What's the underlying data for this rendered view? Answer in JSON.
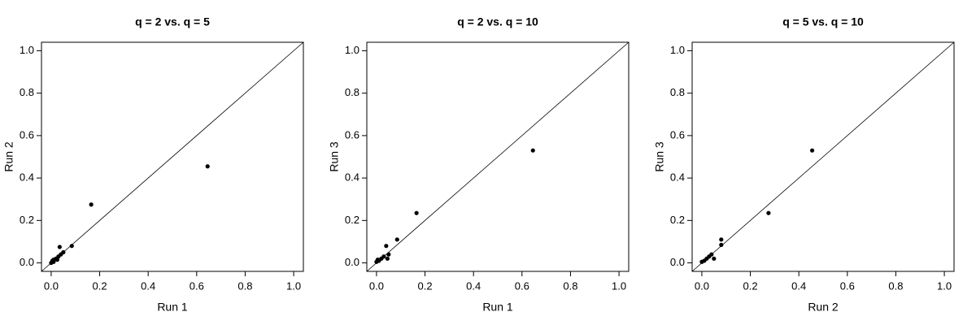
{
  "chart_data": [
    {
      "type": "scatter",
      "title": "q = 2 vs. q = 5",
      "x_label": "Run 1",
      "y_label": "Run 2",
      "x": [
        0.645,
        0.165,
        0.085,
        0.035,
        0.05,
        0.04,
        0.03,
        0.02,
        0.01,
        0.005,
        0,
        0.01,
        0.025
      ],
      "values": [
        0.455,
        0.275,
        0.08,
        0.075,
        0.05,
        0.04,
        0.03,
        0.02,
        0.015,
        0.01,
        0,
        0.005,
        0.015
      ],
      "color": "#000000",
      "diagonal": true,
      "xlim": [
        -0.04,
        1.04
      ],
      "ylim": [
        -0.04,
        1.04
      ],
      "xticks": [
        {
          "value": 0,
          "label": "0.0"
        },
        0.2,
        0.4,
        0.6,
        0.8,
        {
          "value": 1,
          "label": "1.0"
        }
      ],
      "yticks": [
        {
          "value": 0,
          "label": "0.0"
        },
        0.2,
        0.4,
        0.6,
        0.8,
        {
          "value": 1,
          "label": "1.0"
        }
      ]
    },
    {
      "type": "scatter",
      "title": "q = 2 vs. q = 10",
      "x_label": "Run 1",
      "y_label": "Run 3",
      "x": [
        0.645,
        0.165,
        0.085,
        0.04,
        0.05,
        0.045,
        0.03,
        0.02,
        0.01,
        0,
        0.005
      ],
      "values": [
        0.53,
        0.235,
        0.11,
        0.08,
        0.04,
        0.02,
        0.03,
        0.02,
        0.01,
        0.005,
        0.015
      ],
      "color": "#000000",
      "diagonal": true,
      "xlim": [
        -0.04,
        1.04
      ],
      "ylim": [
        -0.04,
        1.04
      ],
      "xticks": [
        {
          "value": 0,
          "label": "0.0"
        },
        0.2,
        0.4,
        0.6,
        0.8,
        {
          "value": 1,
          "label": "1.0"
        }
      ],
      "yticks": [
        {
          "value": 0,
          "label": "0.0"
        },
        0.2,
        0.4,
        0.6,
        0.8,
        {
          "value": 1,
          "label": "1.0"
        }
      ]
    },
    {
      "type": "scatter",
      "title": "q = 5 vs. q = 10",
      "x_label": "Run 2",
      "y_label": "Run 3",
      "x": [
        0.455,
        0.275,
        0.08,
        0.08,
        0.05,
        0.04,
        0.03,
        0.02,
        0.01,
        0
      ],
      "values": [
        0.53,
        0.235,
        0.11,
        0.085,
        0.02,
        0.04,
        0.03,
        0.02,
        0.01,
        0.005
      ],
      "color": "#000000",
      "diagonal": true,
      "xlim": [
        -0.04,
        1.04
      ],
      "ylim": [
        -0.04,
        1.04
      ],
      "xticks": [
        {
          "value": 0,
          "label": "0.0"
        },
        0.2,
        0.4,
        0.6,
        0.8,
        {
          "value": 1,
          "label": "1.0"
        }
      ],
      "yticks": [
        {
          "value": 0,
          "label": "0.0"
        },
        0.2,
        0.4,
        0.6,
        0.8,
        {
          "value": 1,
          "label": "1.0"
        }
      ]
    }
  ]
}
